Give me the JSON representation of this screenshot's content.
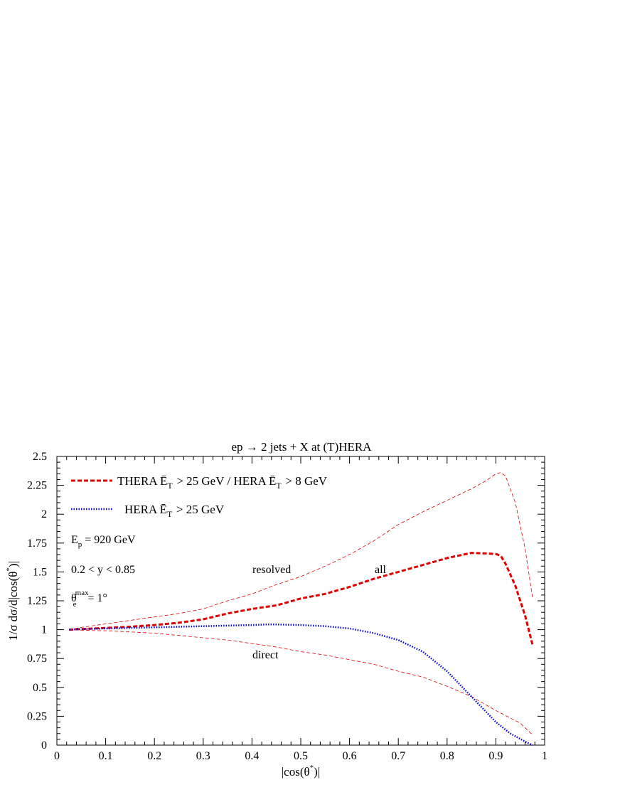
{
  "chart_data": {
    "type": "line",
    "title": "ep → 2 jets + X at (T)HERA",
    "xlabel": "|cos(θ*)|",
    "ylabel": "1/σ dσ/d|cos(θ*)|",
    "xlim": [
      0,
      1
    ],
    "ylim": [
      0,
      2.5
    ],
    "xticks": [
      0,
      0.1,
      0.2,
      0.3,
      0.4,
      0.5,
      0.6,
      0.7,
      0.8,
      0.9,
      1
    ],
    "xtick_labels": [
      "0",
      "0.1",
      "0.2",
      "0.3",
      "0.4",
      "0.5",
      "0.6",
      "0.7",
      "0.8",
      "0.9",
      "1"
    ],
    "yticks": [
      0,
      0.25,
      0.5,
      0.75,
      1,
      1.25,
      1.5,
      1.75,
      2,
      2.25,
      2.5
    ],
    "ytick_labels": [
      "0",
      "0.25",
      "0.5",
      "0.75",
      "1",
      "1.25",
      "1.5",
      "1.75",
      "2",
      "2.25",
      "2.5"
    ],
    "grid": false,
    "legend": {
      "position": "top-left",
      "entries": [
        {
          "label": "THERA Ē_T > 25 GeV / HERA Ē_T > 8 GeV",
          "color": "#e00000",
          "style": "dashed"
        },
        {
          "label": "HERA Ē_T > 25 GeV",
          "color": "#0000e0",
          "style": "dotted"
        }
      ]
    },
    "info_text": [
      "E_p = 920 GeV",
      "0.2 < y < 0.85",
      "θ_e^max = 1°"
    ],
    "annotations": [
      {
        "text": "resolved",
        "x": 0.4,
        "y": 1.5
      },
      {
        "text": "all",
        "x": 0.66,
        "y": 1.5
      },
      {
        "text": "direct",
        "x": 0.41,
        "y": 0.77
      }
    ],
    "series": [
      {
        "name": "resolved",
        "color": "#e00000",
        "style": "thin-dashed",
        "x": [
          0.025,
          0.05,
          0.1,
          0.15,
          0.2,
          0.25,
          0.3,
          0.35,
          0.4,
          0.45,
          0.5,
          0.55,
          0.6,
          0.65,
          0.7,
          0.75,
          0.8,
          0.85,
          0.88,
          0.9,
          0.91,
          0.92,
          0.94,
          0.96,
          0.975
        ],
        "y": [
          1.0,
          1.02,
          1.05,
          1.08,
          1.11,
          1.14,
          1.18,
          1.25,
          1.31,
          1.39,
          1.46,
          1.55,
          1.65,
          1.77,
          1.91,
          2.02,
          2.12,
          2.22,
          2.29,
          2.35,
          2.36,
          2.33,
          2.1,
          1.7,
          1.28
        ]
      },
      {
        "name": "all",
        "color": "#e00000",
        "style": "thick-dashed",
        "x": [
          0.025,
          0.05,
          0.1,
          0.15,
          0.2,
          0.25,
          0.3,
          0.35,
          0.4,
          0.45,
          0.5,
          0.55,
          0.6,
          0.65,
          0.7,
          0.75,
          0.8,
          0.85,
          0.88,
          0.9,
          0.91,
          0.92,
          0.94,
          0.96,
          0.975
        ],
        "y": [
          1.0,
          1.005,
          1.015,
          1.025,
          1.04,
          1.06,
          1.09,
          1.14,
          1.18,
          1.21,
          1.27,
          1.31,
          1.37,
          1.44,
          1.5,
          1.56,
          1.62,
          1.665,
          1.66,
          1.655,
          1.64,
          1.57,
          1.38,
          1.12,
          0.87
        ]
      },
      {
        "name": "direct",
        "color": "#e00000",
        "style": "thin-dashed",
        "x": [
          0.025,
          0.05,
          0.1,
          0.15,
          0.2,
          0.25,
          0.3,
          0.35,
          0.4,
          0.45,
          0.5,
          0.55,
          0.6,
          0.65,
          0.7,
          0.75,
          0.8,
          0.85,
          0.9,
          0.95,
          0.975
        ],
        "y": [
          1.0,
          0.995,
          0.99,
          0.98,
          0.97,
          0.95,
          0.93,
          0.91,
          0.88,
          0.85,
          0.81,
          0.78,
          0.74,
          0.7,
          0.64,
          0.59,
          0.51,
          0.42,
          0.3,
          0.19,
          0.09
        ]
      },
      {
        "name": "HERA Ē_T > 25 GeV",
        "color": "#0000e0",
        "style": "dotted",
        "x": [
          0.025,
          0.05,
          0.1,
          0.15,
          0.2,
          0.25,
          0.3,
          0.35,
          0.4,
          0.43,
          0.45,
          0.5,
          0.55,
          0.6,
          0.65,
          0.7,
          0.75,
          0.8,
          0.85,
          0.9,
          0.93,
          0.96,
          0.975
        ],
        "y": [
          1.0,
          1.005,
          1.01,
          1.015,
          1.02,
          1.025,
          1.03,
          1.035,
          1.04,
          1.045,
          1.045,
          1.04,
          1.03,
          1.01,
          0.97,
          0.91,
          0.81,
          0.64,
          0.42,
          0.2,
          0.1,
          0.03,
          0.0
        ]
      }
    ]
  }
}
